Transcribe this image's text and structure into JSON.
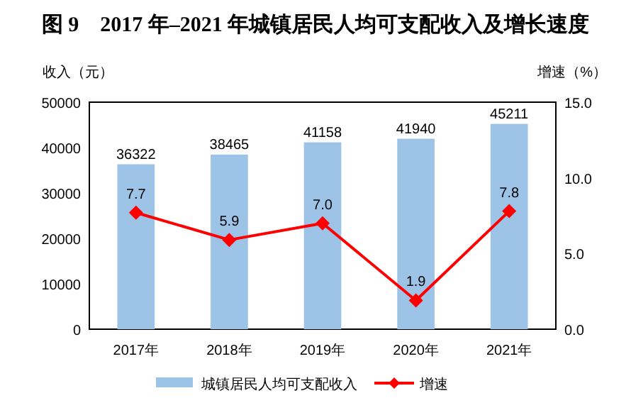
{
  "chart_data": {
    "type": "bar",
    "title": "图 9　2017 年–2021 年城镇居民人均可支配收入及增长速度",
    "ylabel": "收入（元）",
    "y2label": "增速（%）",
    "categories": [
      "2017年",
      "2018年",
      "2019年",
      "2020年",
      "2021年"
    ],
    "series": [
      {
        "name": "城镇居民人均可支配收入",
        "color": "#9dc3e6",
        "values": [
          36322,
          38465,
          41158,
          41940,
          45211
        ]
      },
      {
        "name": "增速",
        "type": "line",
        "axis": "y2",
        "color": "#ff0000",
        "marker": "diamond",
        "values": [
          7.7,
          5.9,
          7.0,
          1.9,
          7.8
        ],
        "value_labels": [
          "7.7",
          "5.9",
          "7.0",
          "1.9",
          "7.8"
        ]
      }
    ],
    "ylim": [
      0,
      50000
    ],
    "yticks": [
      0,
      10000,
      20000,
      30000,
      40000,
      50000
    ],
    "y2lim": [
      0,
      15
    ],
    "y2ticks": [
      {
        "value": 0,
        "label": "0.0"
      },
      {
        "value": 5,
        "label": "5.0"
      },
      {
        "value": 10,
        "label": "10.0"
      },
      {
        "value": 15,
        "label": "15.0"
      }
    ],
    "data_labels": true,
    "legend": "bottom",
    "grid": false
  }
}
